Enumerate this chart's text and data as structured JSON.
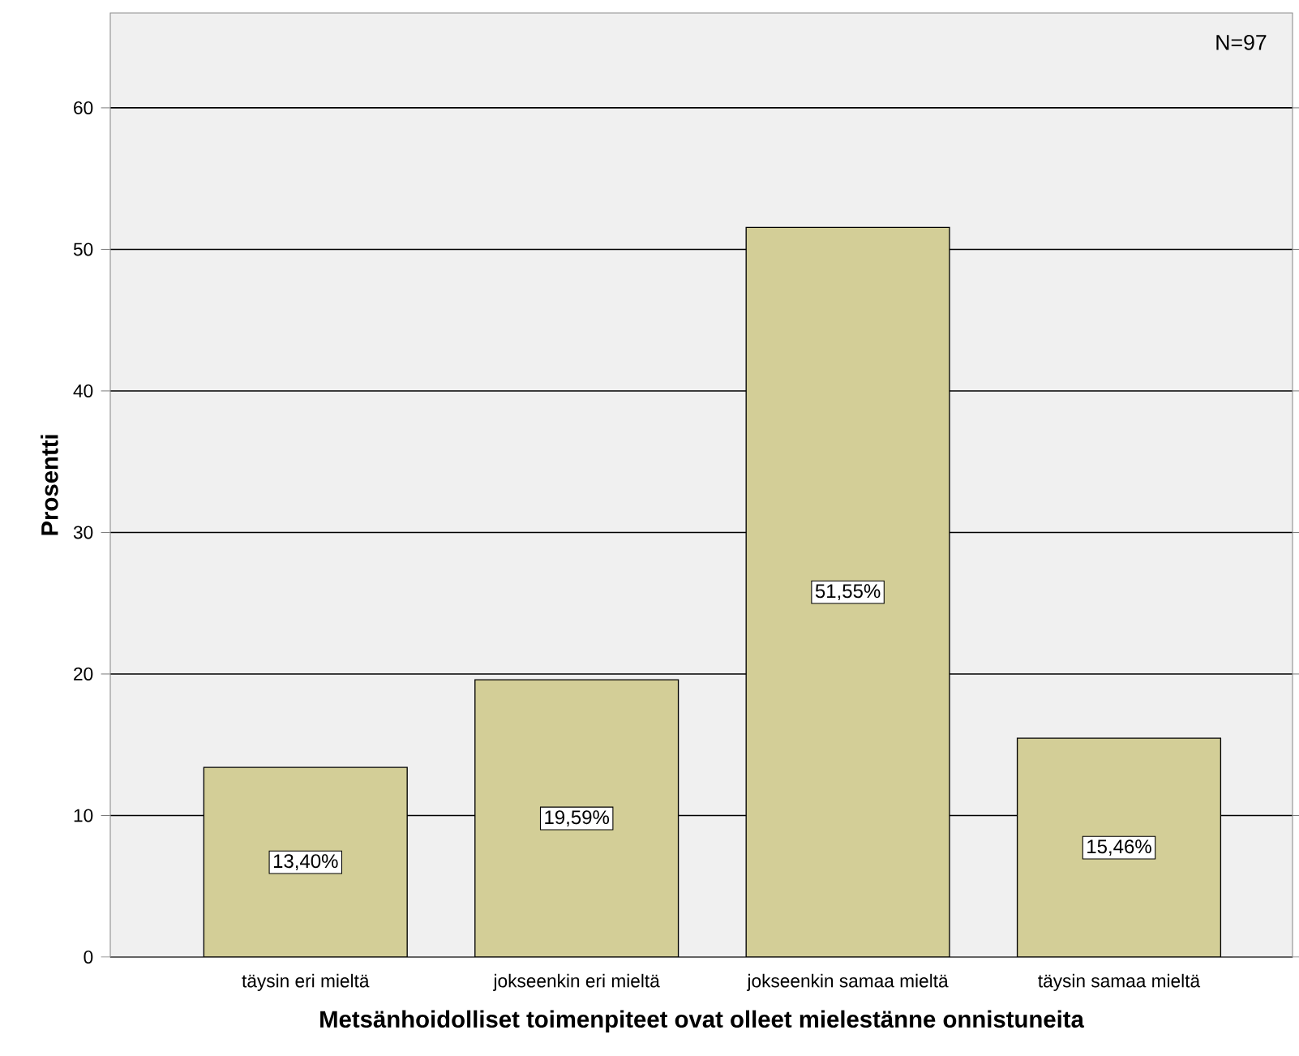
{
  "chart_data": {
    "type": "bar",
    "xlabel": "Metsänhoidolliset toimenpiteet ovat olleet mielestänne onnistuneita",
    "ylabel": "Prosentti",
    "categories": [
      "täysin eri mieltä",
      "jokseenkin eri mieltä",
      "jokseenkin samaa mieltä",
      "täysin samaa mieltä"
    ],
    "values": [
      13.4,
      19.59,
      51.55,
      15.46
    ],
    "value_labels": [
      "13,40%",
      "19,59%",
      "51,55%",
      "15,46%"
    ],
    "color": "#d3ce97",
    "ylim": [
      0,
      66.7
    ],
    "yticks": [
      0,
      10,
      20,
      30,
      40,
      50,
      60
    ],
    "grid": "y",
    "annotations": [
      "N=97"
    ]
  }
}
